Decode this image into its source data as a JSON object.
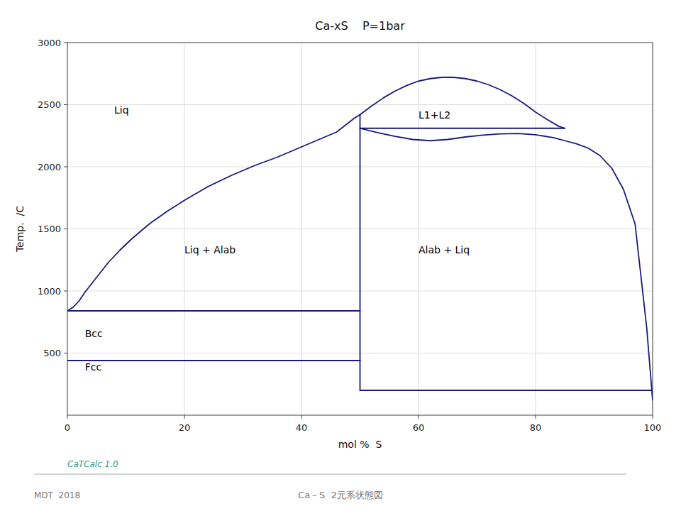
{
  "chart_data": {
    "type": "line",
    "title": "Ca-xS    P=1bar",
    "x_label": "mol %  S",
    "y_label": "Temp.  /C",
    "xlim": [
      0,
      100
    ],
    "ylim": [
      0,
      3000
    ],
    "xticks": [
      0,
      20,
      40,
      60,
      80,
      100
    ],
    "yticks": [
      500,
      1000,
      1500,
      2000,
      2500,
      3000
    ],
    "grid": true,
    "color": "#1a1a7a",
    "series": [
      {
        "x": [
          0,
          1,
          2,
          3,
          5,
          7,
          9,
          11,
          14,
          17,
          20,
          24,
          28,
          32,
          36,
          40,
          43,
          46,
          49,
          50
        ],
        "values": [
          840,
          870,
          920,
          990,
          1110,
          1230,
          1330,
          1420,
          1540,
          1640,
          1730,
          1840,
          1930,
          2010,
          2080,
          2160,
          2220,
          2280,
          2390,
          2420
        ]
      },
      {
        "x": [
          50,
          53,
          56,
          59,
          62,
          65,
          68,
          71,
          74,
          77,
          80,
          83,
          85,
          87,
          89,
          91,
          93,
          95,
          97,
          99,
          100
        ],
        "values": [
          2310,
          2275,
          2245,
          2220,
          2210,
          2220,
          2240,
          2255,
          2265,
          2268,
          2258,
          2235,
          2210,
          2185,
          2150,
          2090,
          1990,
          1820,
          1540,
          700,
          120
        ]
      },
      {
        "x": [
          50,
          52,
          54,
          56,
          58,
          60,
          62,
          64,
          66,
          68,
          70,
          72,
          74,
          76,
          78,
          80,
          82,
          84,
          85
        ],
        "values": [
          2420,
          2490,
          2555,
          2610,
          2655,
          2690,
          2710,
          2720,
          2720,
          2710,
          2690,
          2660,
          2620,
          2570,
          2510,
          2440,
          2380,
          2325,
          2310
        ]
      },
      {
        "x": [
          50,
          85
        ],
        "values": [
          2310,
          2310
        ]
      },
      {
        "x": [
          50,
          50
        ],
        "values": [
          440,
          2420
        ]
      },
      {
        "x": [
          0,
          50
        ],
        "values": [
          840,
          840
        ]
      },
      {
        "x": [
          0,
          50
        ],
        "values": [
          440,
          440
        ]
      },
      {
        "x": [
          50,
          100
        ],
        "values": [
          200,
          200
        ]
      },
      {
        "x": [
          50,
          50
        ],
        "values": [
          200,
          440
        ]
      }
    ],
    "annotations": [
      {
        "text": "Liq",
        "x": 8,
        "y": 2460
      },
      {
        "text": "L1+L2",
        "x": 60,
        "y": 2420
      },
      {
        "text": "Liq + Alab",
        "x": 20,
        "y": 1330
      },
      {
        "text": "Alab + Liq",
        "x": 60,
        "y": 1330
      },
      {
        "text": "Bcc",
        "x": 3,
        "y": 660
      },
      {
        "text": "Fcc",
        "x": 3,
        "y": 390
      }
    ],
    "footer": [
      "CaTCalc 1.0",
      "MDT  2018",
      "Ca－S  2元系状態図"
    ]
  }
}
